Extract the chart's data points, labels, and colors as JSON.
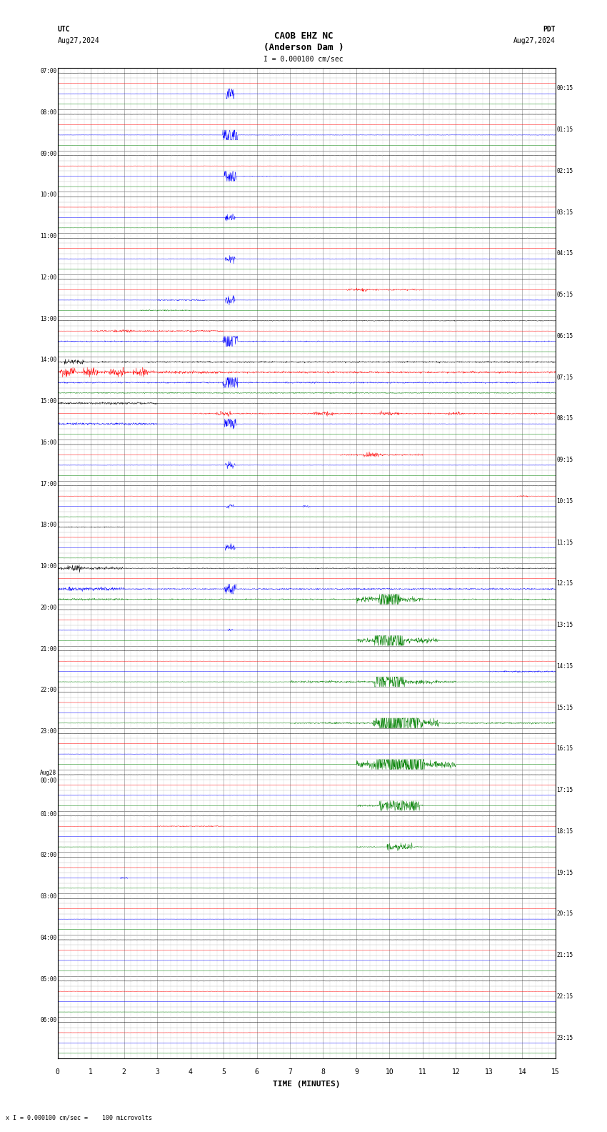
{
  "title_line1": "CAOB EHZ NC",
  "title_line2": "(Anderson Dam )",
  "scale_label": "I = 0.000100 cm/sec",
  "left_header": "UTC",
  "left_subheader": "Aug27,2024",
  "right_header": "PDT",
  "right_subheader": "Aug27,2024",
  "bottom_label": "TIME (MINUTES)",
  "bottom_note": "x I = 0.000100 cm/sec =    100 microvolts",
  "xlabel_ticks": [
    0,
    1,
    2,
    3,
    4,
    5,
    6,
    7,
    8,
    9,
    10,
    11,
    12,
    13,
    14,
    15
  ],
  "left_time_labels": [
    "07:00",
    "08:00",
    "09:00",
    "10:00",
    "11:00",
    "12:00",
    "13:00",
    "14:00",
    "15:00",
    "16:00",
    "17:00",
    "18:00",
    "19:00",
    "20:00",
    "21:00",
    "22:00",
    "23:00",
    "Aug28\n00:00",
    "01:00",
    "02:00",
    "03:00",
    "04:00",
    "05:00",
    "06:00"
  ],
  "right_time_labels": [
    "00:15",
    "01:15",
    "02:15",
    "03:15",
    "04:15",
    "05:15",
    "06:15",
    "07:15",
    "08:15",
    "09:15",
    "10:15",
    "11:15",
    "12:15",
    "13:15",
    "14:15",
    "15:15",
    "16:15",
    "17:15",
    "18:15",
    "19:15",
    "20:15",
    "21:15",
    "22:15",
    "23:15"
  ],
  "n_rows": 24,
  "n_cols": 15,
  "background_color": "#ffffff",
  "grid_color": "#aaaaaa",
  "trace_colors": [
    "black",
    "red",
    "blue",
    "green"
  ],
  "fig_width": 8.5,
  "fig_height": 15.84
}
